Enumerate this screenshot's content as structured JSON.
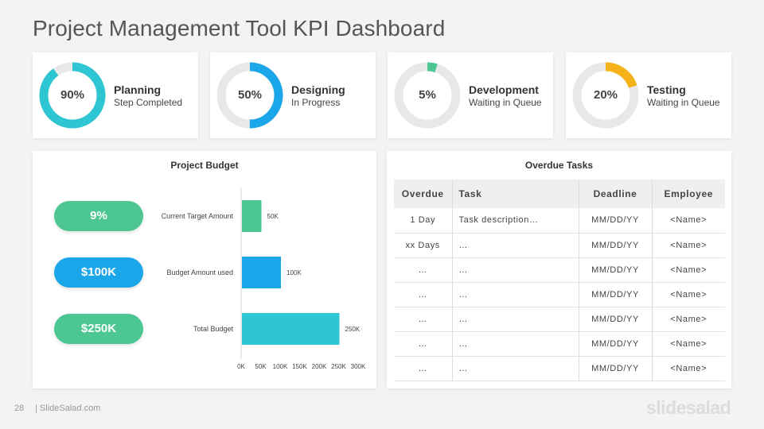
{
  "title": "Project Management Tool KPI Dashboard",
  "kpis": [
    {
      "percent": "90%",
      "value": 90,
      "name": "Planning",
      "status": "Step Completed",
      "color": "#2ec6d3"
    },
    {
      "percent": "50%",
      "value": 50,
      "name": "Designing",
      "status": "In Progress",
      "color": "#1aa6e8"
    },
    {
      "percent": "5%",
      "value": 5,
      "name": "Development",
      "status": "Waiting in Queue",
      "color": "#4cc792"
    },
    {
      "percent": "20%",
      "value": 20,
      "name": "Testing",
      "status": "Waiting in Queue",
      "color": "#f5b31b"
    }
  ],
  "budget": {
    "title": "Project Budget",
    "pills": [
      {
        "label": "9%",
        "color": "#4cc792"
      },
      {
        "label": "$100K",
        "color": "#1aa6e8"
      },
      {
        "label": "$250K",
        "color": "#4cc792"
      }
    ]
  },
  "chart_data": {
    "type": "bar",
    "orientation": "horizontal",
    "title": "Project Budget",
    "categories": [
      "Current Target Amount",
      "Budget Amount used",
      "Total Budget"
    ],
    "values": [
      50,
      100,
      250
    ],
    "value_labels": [
      "50K",
      "100K",
      "250K"
    ],
    "colors": [
      "#4cc792",
      "#1aa6e8",
      "#2ec6d3"
    ],
    "xlim": [
      0,
      300
    ],
    "x_ticks": [
      "0K",
      "50K",
      "100K",
      "150K",
      "200K",
      "250K",
      "300K"
    ],
    "grid": false
  },
  "overdue": {
    "title": "Overdue Tasks",
    "headers": [
      "Overdue",
      "Task",
      "Deadline",
      "Employee"
    ],
    "rows": [
      [
        "1 Day",
        "Task description…",
        "MM/DD/YY",
        "<Name>"
      ],
      [
        "xx Days",
        "…",
        "MM/DD/YY",
        "<Name>"
      ],
      [
        "…",
        "…",
        "MM/DD/YY",
        "<Name>"
      ],
      [
        "…",
        "…",
        "MM/DD/YY",
        "<Name>"
      ],
      [
        "…",
        "…",
        "MM/DD/YY",
        "<Name>"
      ],
      [
        "…",
        "…",
        "MM/DD/YY",
        "<Name>"
      ],
      [
        "…",
        "…",
        "MM/DD/YY",
        "<Name>"
      ]
    ]
  },
  "footer": {
    "page_number": "28",
    "site": "| SlideSalad.com",
    "brand": "slidesalad"
  }
}
